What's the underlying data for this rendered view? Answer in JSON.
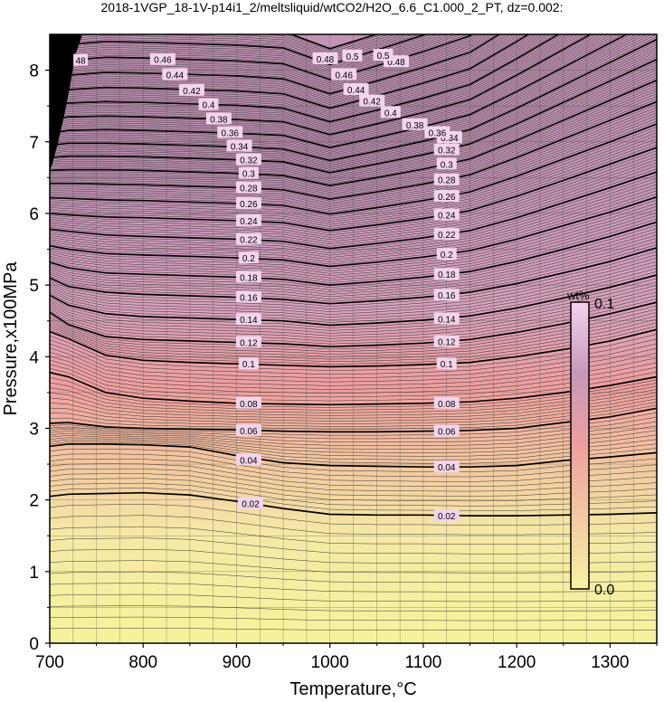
{
  "title": "2018-1VGP_18-1V-p14i1_2/meltsliquid/wtCO2/H2O_6.6_C1.000_2_PT, dz=0.002:",
  "chart_data": {
    "type": "contour",
    "xlabel": "Temperature,°C",
    "ylabel": "Pressure,x100MPa",
    "xlim": [
      700,
      1350
    ],
    "ylim": [
      0,
      8.5
    ],
    "xticks": [
      700,
      800,
      900,
      1000,
      1100,
      1200,
      1300
    ],
    "yticks": [
      0,
      1,
      2,
      3,
      4,
      5,
      6,
      7,
      8
    ],
    "grid": true,
    "contour_interval": 0.002,
    "colorbar": {
      "label": "wt%",
      "min_label": "0.0",
      "max_label": "0.1",
      "range": [
        0.0,
        0.1
      ],
      "colors": [
        "#f7f3a3",
        "#f3c9a2",
        "#ee9f9f",
        "#c797b8",
        "#f4d2f1"
      ]
    },
    "contours": [
      {
        "level": 0.02,
        "label": "0.02",
        "x": [
          700,
          720,
          760,
          800,
          850,
          900,
          950,
          1000,
          1050,
          1100,
          1150,
          1200,
          1250,
          1300,
          1350
        ],
        "y": [
          2.05,
          2.08,
          2.09,
          2.1,
          2.07,
          1.98,
          1.88,
          1.8,
          1.79,
          1.79,
          1.78,
          1.78,
          1.79,
          1.8,
          1.82
        ]
      },
      {
        "level": 0.04,
        "label": "0.04",
        "x": [
          700,
          720,
          760,
          800,
          850,
          900,
          950,
          1000,
          1050,
          1100,
          1150,
          1200,
          1250,
          1300,
          1350
        ],
        "y": [
          2.75,
          2.78,
          2.78,
          2.77,
          2.74,
          2.62,
          2.52,
          2.48,
          2.47,
          2.46,
          2.46,
          2.48,
          2.55,
          2.6,
          2.66
        ]
      },
      {
        "level": 0.06,
        "label": "0.06",
        "x": [
          700,
          720,
          760,
          800,
          850,
          900,
          950,
          1000,
          1050,
          1100,
          1150,
          1200,
          1250,
          1300,
          1350
        ],
        "y": [
          3.07,
          3.08,
          3.02,
          3.0,
          2.99,
          2.98,
          2.96,
          2.95,
          2.95,
          2.96,
          2.97,
          3.0,
          3.08,
          3.16,
          3.28
        ]
      },
      {
        "level": 0.08,
        "label": "0.08",
        "x": [
          700,
          720,
          760,
          800,
          850,
          900,
          950,
          1000,
          1050,
          1100,
          1150,
          1200,
          1250,
          1300,
          1350
        ],
        "y": [
          3.78,
          3.72,
          3.5,
          3.42,
          3.38,
          3.35,
          3.34,
          3.33,
          3.34,
          3.35,
          3.37,
          3.42,
          3.5,
          3.6,
          3.72
        ]
      },
      {
        "level": 0.1,
        "label": "0.1",
        "x": [
          700,
          720,
          760,
          800,
          850,
          900,
          950,
          1000,
          1050,
          1100,
          1150,
          1200,
          1250,
          1300,
          1350
        ],
        "y": [
          4.35,
          4.25,
          4.02,
          3.95,
          3.92,
          3.9,
          3.88,
          3.86,
          3.87,
          3.89,
          3.92,
          4.0,
          4.1,
          4.22,
          4.38
        ]
      },
      {
        "level": 0.12,
        "label": "0.12",
        "x": [
          700,
          720,
          760,
          800,
          850,
          900,
          950,
          1000,
          1050,
          1100,
          1150,
          1200,
          1250,
          1300,
          1350
        ],
        "y": [
          4.62,
          4.45,
          4.28,
          4.24,
          4.22,
          4.2,
          4.18,
          4.14,
          4.16,
          4.19,
          4.24,
          4.34,
          4.46,
          4.6,
          4.76
        ]
      },
      {
        "level": 0.14,
        "label": "0.14",
        "x": [
          700,
          720,
          760,
          800,
          850,
          900,
          950,
          1000,
          1050,
          1100,
          1150,
          1200,
          1250,
          1300,
          1350
        ],
        "y": [
          4.86,
          4.72,
          4.6,
          4.56,
          4.54,
          4.52,
          4.5,
          4.44,
          4.47,
          4.51,
          4.57,
          4.68,
          4.82,
          4.97,
          5.14
        ]
      },
      {
        "level": 0.16,
        "label": "0.16",
        "x": [
          700,
          720,
          760,
          800,
          850,
          900,
          950,
          1000,
          1050,
          1100,
          1150,
          1200,
          1250,
          1300,
          1350
        ],
        "y": [
          5.1,
          4.98,
          4.9,
          4.87,
          4.85,
          4.83,
          4.8,
          4.74,
          4.78,
          4.83,
          4.9,
          5.02,
          5.17,
          5.33,
          5.52
        ]
      },
      {
        "level": 0.18,
        "label": "0.18",
        "x": [
          700,
          720,
          760,
          800,
          850,
          900,
          950,
          1000,
          1050,
          1100,
          1150,
          1200,
          1250,
          1300,
          1350
        ],
        "y": [
          5.32,
          5.24,
          5.17,
          5.15,
          5.13,
          5.11,
          5.08,
          5.0,
          5.05,
          5.11,
          5.19,
          5.33,
          5.5,
          5.68,
          5.88
        ]
      },
      {
        "level": 0.2,
        "label": "0.2",
        "x": [
          700,
          720,
          760,
          800,
          850,
          900,
          950,
          1000,
          1050,
          1100,
          1150,
          1200,
          1250,
          1300,
          1350
        ],
        "y": [
          5.55,
          5.5,
          5.44,
          5.42,
          5.4,
          5.38,
          5.35,
          5.26,
          5.32,
          5.39,
          5.48,
          5.64,
          5.83,
          6.02,
          6.23
        ]
      },
      {
        "level": 0.22,
        "label": "0.22",
        "x": [
          700,
          720,
          760,
          800,
          850,
          900,
          950,
          1000,
          1050,
          1100,
          1150,
          1200,
          1250,
          1300,
          1350
        ],
        "y": [
          5.78,
          5.75,
          5.7,
          5.68,
          5.66,
          5.64,
          5.61,
          5.51,
          5.58,
          5.66,
          5.76,
          5.94,
          6.15,
          6.36,
          6.58
        ]
      },
      {
        "level": 0.24,
        "label": "0.24",
        "x": [
          700,
          720,
          760,
          800,
          850,
          900,
          950,
          1000,
          1050,
          1100,
          1150,
          1200,
          1250,
          1300,
          1350
        ],
        "y": [
          6.0,
          5.98,
          5.95,
          5.94,
          5.92,
          5.9,
          5.87,
          5.76,
          5.84,
          5.93,
          6.04,
          6.24,
          6.46,
          6.69,
          6.92
        ]
      },
      {
        "level": 0.26,
        "label": "0.26",
        "x": [
          700,
          720,
          760,
          800,
          850,
          900,
          950,
          1000,
          1050,
          1100,
          1150,
          1200,
          1250,
          1300,
          1350
        ],
        "y": [
          6.22,
          6.21,
          6.19,
          6.18,
          6.16,
          6.14,
          6.11,
          5.99,
          6.08,
          6.18,
          6.3,
          6.52,
          6.76,
          7.0,
          7.25
        ]
      },
      {
        "level": 0.28,
        "label": "0.28",
        "x": [
          700,
          720,
          760,
          800,
          850,
          900,
          950,
          1000,
          1050,
          1100,
          1150,
          1200,
          1250,
          1300,
          1350
        ],
        "y": [
          6.42,
          6.42,
          6.41,
          6.4,
          6.38,
          6.36,
          6.33,
          6.2,
          6.3,
          6.41,
          6.54,
          6.78,
          7.04,
          7.3,
          7.56
        ]
      },
      {
        "level": 0.3,
        "label": "0.3",
        "x": [
          700,
          720,
          760,
          800,
          850,
          900,
          950,
          1000,
          1050,
          1100,
          1150,
          1200,
          1250,
          1300,
          1350
        ],
        "y": [
          6.6,
          6.61,
          6.61,
          6.6,
          6.58,
          6.56,
          6.53,
          6.39,
          6.5,
          6.62,
          6.76,
          7.02,
          7.3,
          7.58,
          7.86
        ]
      },
      {
        "level": 0.32,
        "label": "0.32",
        "x": [
          700,
          720,
          760,
          800,
          850,
          900,
          950,
          1000,
          1050,
          1100,
          1150,
          1200,
          1250,
          1300,
          1350
        ],
        "y": [
          6.78,
          6.8,
          6.8,
          6.79,
          6.77,
          6.75,
          6.72,
          6.57,
          6.69,
          6.82,
          6.97,
          7.25,
          7.55,
          7.85,
          8.15
        ]
      },
      {
        "level": 0.34,
        "label": "0.34",
        "x": [
          700,
          720,
          760,
          800,
          850,
          900,
          950,
          1000,
          1050,
          1100,
          1150,
          1200,
          1250,
          1300,
          1350
        ],
        "y": [
          6.95,
          6.98,
          6.98,
          6.97,
          6.95,
          6.93,
          6.9,
          6.74,
          6.87,
          7.01,
          7.17,
          7.47,
          7.79,
          8.11,
          8.43
        ]
      },
      {
        "level": 0.36,
        "label": "0.36",
        "x": [
          700,
          720,
          760,
          800,
          850,
          900,
          950,
          1000,
          1050,
          1100,
          1150,
          1200,
          1250,
          1300,
          1350
        ],
        "y": [
          7.12,
          7.16,
          7.17,
          7.16,
          7.14,
          7.12,
          7.09,
          6.92,
          7.06,
          7.21,
          7.38,
          7.7,
          8.04,
          8.38,
          8.72
        ]
      },
      {
        "level": 0.38,
        "label": "0.38",
        "x": [
          700,
          720,
          760,
          800,
          850,
          900,
          950,
          1000,
          1050,
          1100,
          1150,
          1200,
          1250,
          1300,
          1350
        ],
        "y": [
          7.3,
          7.35,
          7.36,
          7.35,
          7.33,
          7.31,
          7.28,
          7.1,
          7.25,
          7.41,
          7.59,
          7.93,
          8.29,
          8.65,
          9.0
        ]
      },
      {
        "level": 0.4,
        "label": "0.4",
        "x": [
          700,
          720,
          760,
          800,
          850,
          900,
          950,
          1000,
          1050,
          1100,
          1150,
          1200,
          1250,
          1300,
          1350
        ],
        "y": [
          7.48,
          7.54,
          7.56,
          7.55,
          7.53,
          7.51,
          7.47,
          7.28,
          7.44,
          7.61,
          7.8,
          8.16,
          8.54,
          8.92,
          9.3
        ]
      },
      {
        "level": 0.42,
        "label": "0.42",
        "x": [
          700,
          720,
          760,
          800,
          850,
          900,
          950,
          1000,
          1050,
          1100,
          1150,
          1200,
          1250,
          1300,
          1350
        ],
        "y": [
          7.66,
          7.73,
          7.76,
          7.75,
          7.73,
          7.71,
          7.67,
          7.47,
          7.64,
          7.82,
          8.02,
          8.4,
          8.8,
          9.2,
          9.6
        ]
      },
      {
        "level": 0.44,
        "label": "0.44",
        "x": [
          700,
          720,
          760,
          800,
          850,
          900,
          950,
          1000,
          1050,
          1100,
          1150,
          1200,
          1250,
          1300,
          1350
        ],
        "y": [
          7.85,
          7.93,
          7.97,
          7.96,
          7.94,
          7.92,
          7.88,
          7.67,
          7.85,
          8.04,
          8.25,
          8.65,
          9.07,
          9.5,
          9.9
        ]
      },
      {
        "level": 0.46,
        "label": "0.46",
        "x": [
          700,
          720,
          760,
          800,
          850,
          900,
          950,
          1000,
          1050,
          1100,
          1150,
          1200,
          1250,
          1300,
          1350
        ],
        "y": [
          8.05,
          8.14,
          8.18,
          8.17,
          8.15,
          8.13,
          8.09,
          7.87,
          8.06,
          8.26,
          8.48,
          8.9,
          9.35,
          9.8,
          10.2
        ]
      },
      {
        "level": 0.48,
        "label": "0.48",
        "x": [
          700,
          720,
          760,
          800,
          850,
          900,
          950,
          1000,
          1050,
          1100,
          1150,
          1200,
          1250,
          1300,
          1350
        ],
        "y": [
          8.26,
          8.36,
          8.4,
          8.39,
          8.37,
          8.35,
          8.31,
          8.08,
          8.28,
          8.49,
          8.72,
          9.16,
          9.62,
          10.1,
          10.5
        ]
      },
      {
        "level": 0.5,
        "label": "0.5",
        "x": [
          700,
          720,
          760,
          800,
          850,
          900,
          950,
          1000,
          1050,
          1100,
          1150,
          1200,
          1250,
          1300,
          1350
        ],
        "y": [
          8.48,
          8.58,
          8.62,
          8.62,
          8.6,
          8.58,
          8.54,
          8.3,
          8.5,
          8.72,
          8.96,
          9.42,
          9.9,
          10.4,
          10.8
        ]
      }
    ],
    "contour_labels": [
      {
        "text": "0.02",
        "x": 915,
        "y": 1.95
      },
      {
        "text": "0.02",
        "x": 1125,
        "y": 1.78
      },
      {
        "text": "0.04",
        "x": 913,
        "y": 2.56
      },
      {
        "text": "0.04",
        "x": 1125,
        "y": 2.46
      },
      {
        "text": "0.06",
        "x": 913,
        "y": 2.97
      },
      {
        "text": "0.06",
        "x": 1125,
        "y": 2.96
      },
      {
        "text": "0.08",
        "x": 913,
        "y": 3.35
      },
      {
        "text": "0.08",
        "x": 1125,
        "y": 3.35
      },
      {
        "text": "0.1",
        "x": 913,
        "y": 3.9
      },
      {
        "text": "0.1",
        "x": 1125,
        "y": 3.9
      },
      {
        "text": "0.12",
        "x": 913,
        "y": 4.2
      },
      {
        "text": "0.12",
        "x": 1125,
        "y": 4.21
      },
      {
        "text": "0.14",
        "x": 913,
        "y": 4.52
      },
      {
        "text": "0.14",
        "x": 1125,
        "y": 4.53
      },
      {
        "text": "0.16",
        "x": 913,
        "y": 4.83
      },
      {
        "text": "0.16",
        "x": 1125,
        "y": 4.86
      },
      {
        "text": "0.18",
        "x": 913,
        "y": 5.11
      },
      {
        "text": "0.18",
        "x": 1125,
        "y": 5.15
      },
      {
        "text": "0.2",
        "x": 913,
        "y": 5.38
      },
      {
        "text": "0.2",
        "x": 1125,
        "y": 5.43
      },
      {
        "text": "0.22",
        "x": 913,
        "y": 5.64
      },
      {
        "text": "0.22",
        "x": 1125,
        "y": 5.71
      },
      {
        "text": "0.24",
        "x": 913,
        "y": 5.9
      },
      {
        "text": "0.24",
        "x": 1125,
        "y": 5.98
      },
      {
        "text": "0.26",
        "x": 913,
        "y": 6.14
      },
      {
        "text": "0.26",
        "x": 1125,
        "y": 6.24
      },
      {
        "text": "0.28",
        "x": 913,
        "y": 6.36
      },
      {
        "text": "0.28",
        "x": 1125,
        "y": 6.47
      },
      {
        "text": "0.3",
        "x": 913,
        "y": 6.56
      },
      {
        "text": "0.3",
        "x": 1125,
        "y": 6.69
      },
      {
        "text": "0.32",
        "x": 913,
        "y": 6.75
      },
      {
        "text": "0.32",
        "x": 1125,
        "y": 6.89
      },
      {
        "text": "0.34",
        "x": 903,
        "y": 6.94
      },
      {
        "text": "0.34",
        "x": 1128,
        "y": 7.06
      },
      {
        "text": "0.36",
        "x": 893,
        "y": 7.13
      },
      {
        "text": "0.36",
        "x": 1115,
        "y": 7.13
      },
      {
        "text": "0.38",
        "x": 881,
        "y": 7.32
      },
      {
        "text": "0.38",
        "x": 1091,
        "y": 7.24
      },
      {
        "text": "0.4",
        "x": 870,
        "y": 7.52
      },
      {
        "text": "0.4",
        "x": 1065,
        "y": 7.41
      },
      {
        "text": "0.42",
        "x": 852,
        "y": 7.72
      },
      {
        "text": "0.42",
        "x": 1045,
        "y": 7.57
      },
      {
        "text": "0.44",
        "x": 834,
        "y": 7.94
      },
      {
        "text": "0.44",
        "x": 1028,
        "y": 7.73
      },
      {
        "text": "0.46",
        "x": 821,
        "y": 8.15
      },
      {
        "text": "0.46",
        "x": 1015,
        "y": 7.94
      },
      {
        "text": "0.48",
        "x": 995,
        "y": 8.16
      },
      {
        "text": "0.48",
        "x": 1071,
        "y": 8.12
      },
      {
        "text": "0.5",
        "x": 1024,
        "y": 8.2
      },
      {
        "text": "0.5",
        "x": 1057,
        "y": 8.21
      },
      {
        "text": "48",
        "x": 733,
        "y": 8.14
      }
    ]
  }
}
